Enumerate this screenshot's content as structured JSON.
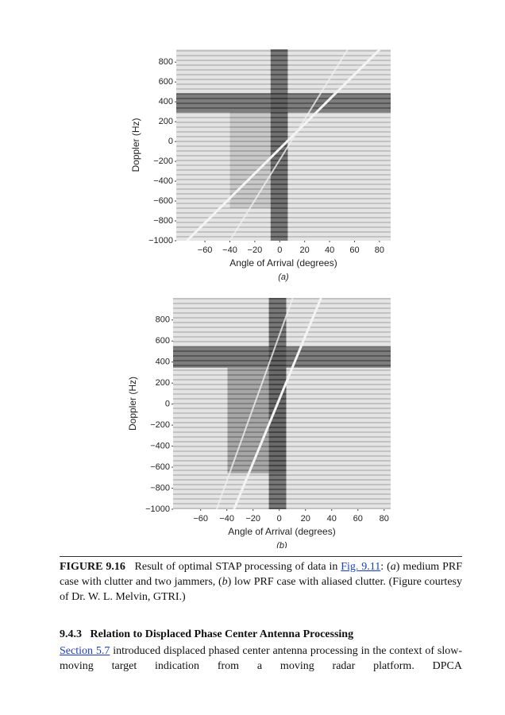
{
  "figures": [
    {
      "ylabel": "Doppler (Hz)",
      "xlabel": "Angle of Arrival (degrees)",
      "label": "(a)",
      "ylim": [
        -1000,
        930
      ],
      "xlim": [
        -83,
        89
      ],
      "yticks": [
        {
          "value": -1000,
          "label": "−1000"
        },
        {
          "value": -800,
          "label": "−800"
        },
        {
          "value": -600,
          "label": "−600"
        },
        {
          "value": -400,
          "label": "−400"
        },
        {
          "value": -200,
          "label": "−200"
        },
        0,
        200,
        400,
        600,
        800
      ],
      "xticks": [
        {
          "value": -60,
          "label": "−60"
        },
        {
          "value": -40,
          "label": "−40"
        },
        {
          "value": -20,
          "label": "−20"
        },
        0,
        20,
        40,
        60,
        80
      ]
    },
    {
      "ylabel": "Doppler (Hz)",
      "xlabel": "Angle of Arrival (degrees)",
      "label": "(b)",
      "ylim": [
        -1000,
        1010
      ],
      "xlim": [
        -81,
        85
      ],
      "yticks": [
        {
          "value": -1000,
          "label": "−1000"
        },
        {
          "value": -800,
          "label": "−800"
        },
        {
          "value": -600,
          "label": "−600"
        },
        {
          "value": -400,
          "label": "−400"
        },
        {
          "value": -200,
          "label": "−200"
        },
        0,
        200,
        400,
        600,
        800
      ],
      "xticks": [
        {
          "value": -60,
          "label": "−60"
        },
        {
          "value": -40,
          "label": "−40"
        },
        {
          "value": -20,
          "label": "−20"
        },
        0,
        20,
        40,
        60,
        80
      ]
    }
  ],
  "caption": {
    "label": "FIGURE 9.16",
    "text1": "Result of optimal STAP processing of data in ",
    "link": "Fig. 9.11",
    "text2": ": (",
    "a": "a",
    "text3": ") medium PRF case with clutter and two jammers, (",
    "b": "b",
    "text4": ") low PRF case with aliased clutter. (Figure courtesy of Dr. W. L. Melvin, GTRI.)"
  },
  "section": {
    "number": "9.4.3",
    "title": "Relation to Displaced Phase Center Antenna Processing"
  },
  "paragraph": {
    "link": "Section 5.7",
    "text": " introduced displaced phased center antenna processing in the context of slow-moving target indication from a moving radar platform. DPCA"
  }
}
